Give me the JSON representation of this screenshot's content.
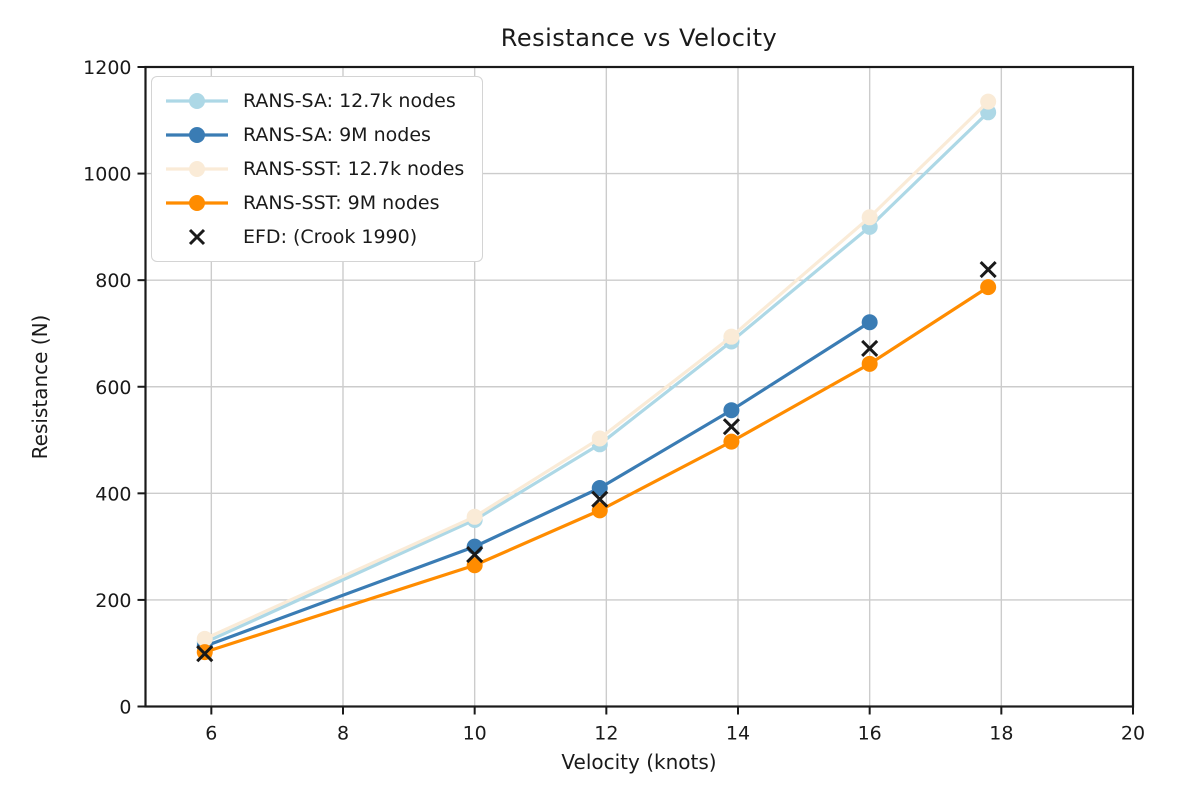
{
  "chart_data": {
    "type": "line",
    "title": "Resistance vs Velocity",
    "xlabel": "Velocity (knots)",
    "ylabel": "Resistance (N)",
    "xlim": [
      5,
      20
    ],
    "ylim": [
      0,
      1200
    ],
    "x_ticks": [
      6,
      8,
      10,
      12,
      14,
      16,
      18,
      20
    ],
    "y_ticks": [
      0,
      200,
      400,
      600,
      800,
      1000,
      1200
    ],
    "grid": true,
    "grid_color": "#cccccc",
    "spine_color": "#1a1a1a",
    "background_color": "#ffffff",
    "legend_position": "upper-left",
    "series": [
      {
        "name": "RANS-SA: 12.7k nodes",
        "color": "#ADD8E6",
        "marker": "circle",
        "line": true,
        "x": [
          5.9,
          10,
          11.9,
          13.9,
          16,
          17.8
        ],
        "values": [
          120,
          350,
          492,
          685,
          900,
          1115
        ]
      },
      {
        "name": "RANS-SA: 9M nodes",
        "color": "#3A7CB4",
        "marker": "circle",
        "line": true,
        "x": [
          5.9,
          10,
          11.9,
          13.9,
          16
        ],
        "values": [
          113,
          300,
          410,
          556,
          721
        ]
      },
      {
        "name": "RANS-SST: 12.7k nodes",
        "color": "#FAEBD7",
        "marker": "circle",
        "line": true,
        "x": [
          5.9,
          10,
          11.9,
          13.9,
          16,
          17.8
        ],
        "values": [
          127,
          356,
          503,
          694,
          918,
          1135
        ]
      },
      {
        "name": "RANS-SST: 9M nodes",
        "color": "#FF8C00",
        "marker": "circle",
        "line": true,
        "x": [
          5.9,
          10,
          11.9,
          13.9,
          16,
          17.8
        ],
        "values": [
          102,
          265,
          368,
          497,
          643,
          787
        ]
      },
      {
        "name": "EFD: (Crook 1990)",
        "color": "#1a1a1a",
        "marker": "x",
        "line": false,
        "x": [
          5.9,
          10,
          11.9,
          13.9,
          16,
          17.8
        ],
        "values": [
          99,
          285,
          389,
          525,
          672,
          820
        ]
      }
    ]
  }
}
